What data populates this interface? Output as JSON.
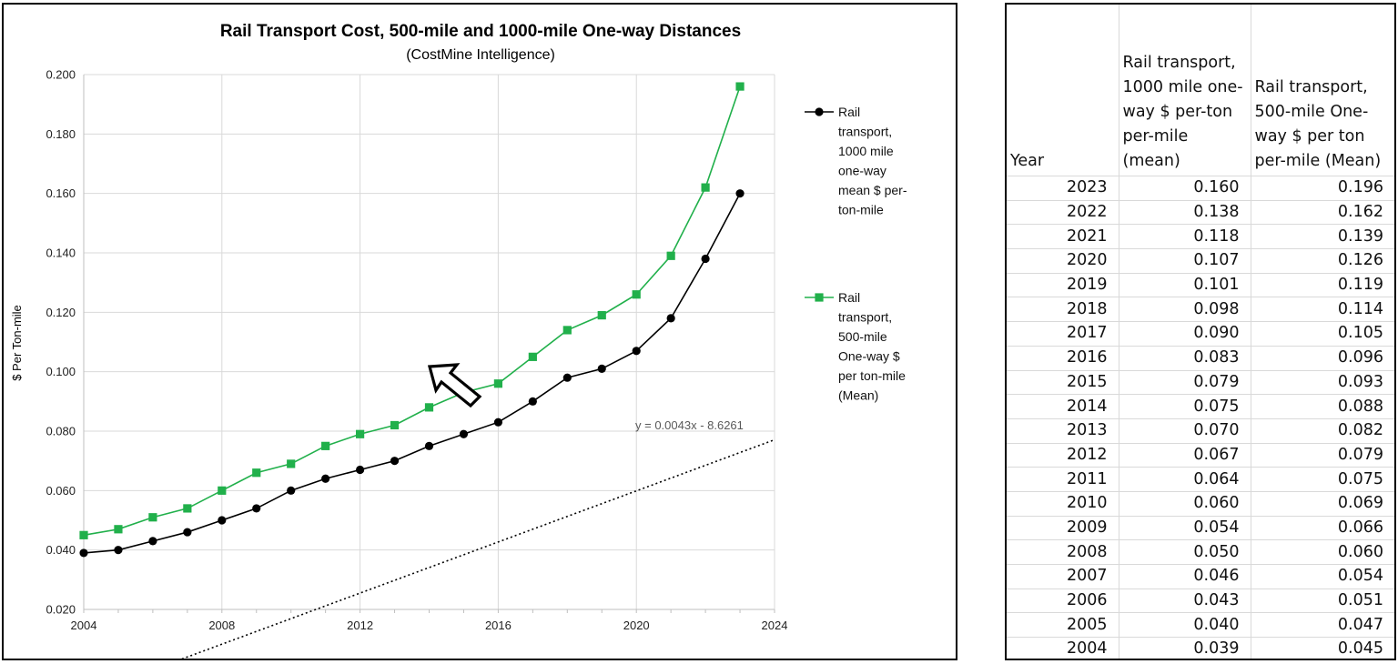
{
  "chart_data": {
    "type": "line",
    "title": "Rail Transport Cost, 500-mile and 1000-mile One-way Distances",
    "subtitle": "(CostMine Intelligence)",
    "ylabel": "$ Per Ton-mile",
    "xlabel": "",
    "xlim": [
      2004,
      2024
    ],
    "ylim": [
      0.02,
      0.2
    ],
    "x_ticks": [
      "2004",
      "2008",
      "2012",
      "2016",
      "2020",
      "2024"
    ],
    "y_ticks": [
      "0.020",
      "0.040",
      "0.060",
      "0.080",
      "0.100",
      "0.120",
      "0.140",
      "0.160",
      "0.180",
      "0.200"
    ],
    "grid": true,
    "legend_position": "right",
    "x": [
      2004,
      2005,
      2006,
      2007,
      2008,
      2009,
      2010,
      2011,
      2012,
      2013,
      2014,
      2015,
      2016,
      2017,
      2018,
      2019,
      2020,
      2021,
      2022,
      2023
    ],
    "series": [
      {
        "name": "Rail transport, 1000 mile one-way mean $ per-ton-mile",
        "color": "#000000",
        "marker": "circle",
        "values": [
          0.039,
          0.04,
          0.043,
          0.046,
          0.05,
          0.054,
          0.06,
          0.064,
          0.067,
          0.07,
          0.075,
          0.079,
          0.083,
          0.09,
          0.098,
          0.101,
          0.107,
          0.118,
          0.138,
          0.16
        ]
      },
      {
        "name": "Rail transport, 500-mile One-way $ per ton-mile (Mean)",
        "color": "#21b04b",
        "marker": "square",
        "values": [
          0.045,
          0.047,
          0.051,
          0.054,
          0.06,
          0.066,
          0.069,
          0.075,
          0.079,
          0.082,
          0.088,
          0.093,
          0.096,
          0.105,
          0.114,
          0.119,
          0.126,
          0.139,
          0.162,
          0.196
        ]
      }
    ],
    "trendline": {
      "style": "dotted",
      "slope": 0.0043,
      "intercept": -8.6261,
      "label": "y = 0.0043x - 8.6261"
    },
    "annotations": [
      {
        "type": "arrow",
        "description": "outlined arrow pointing up-left"
      }
    ]
  },
  "legend_lines": [
    [
      "Rail",
      "transport,",
      "1000 mile",
      "one-way",
      "mean $ per-",
      "ton-mile"
    ],
    [
      "Rail",
      "transport,",
      "500-mile",
      "One-way $",
      "per ton-mile",
      "(Mean)"
    ]
  ],
  "table": {
    "headers": [
      "Year",
      "Rail transport, 1000 mile one-way $ per-ton per-mile (mean)",
      "Rail transport, 500-mile One-way $ per ton per-mile (Mean)"
    ],
    "rows": [
      [
        "2023",
        "0.160",
        "0.196"
      ],
      [
        "2022",
        "0.138",
        "0.162"
      ],
      [
        "2021",
        "0.118",
        "0.139"
      ],
      [
        "2020",
        "0.107",
        "0.126"
      ],
      [
        "2019",
        "0.101",
        "0.119"
      ],
      [
        "2018",
        "0.098",
        "0.114"
      ],
      [
        "2017",
        "0.090",
        "0.105"
      ],
      [
        "2016",
        "0.083",
        "0.096"
      ],
      [
        "2015",
        "0.079",
        "0.093"
      ],
      [
        "2014",
        "0.075",
        "0.088"
      ],
      [
        "2013",
        "0.070",
        "0.082"
      ],
      [
        "2012",
        "0.067",
        "0.079"
      ],
      [
        "2011",
        "0.064",
        "0.075"
      ],
      [
        "2010",
        "0.060",
        "0.069"
      ],
      [
        "2009",
        "0.054",
        "0.066"
      ],
      [
        "2008",
        "0.050",
        "0.060"
      ],
      [
        "2007",
        "0.046",
        "0.054"
      ],
      [
        "2006",
        "0.043",
        "0.051"
      ],
      [
        "2005",
        "0.040",
        "0.047"
      ],
      [
        "2004",
        "0.039",
        "0.045"
      ]
    ]
  }
}
